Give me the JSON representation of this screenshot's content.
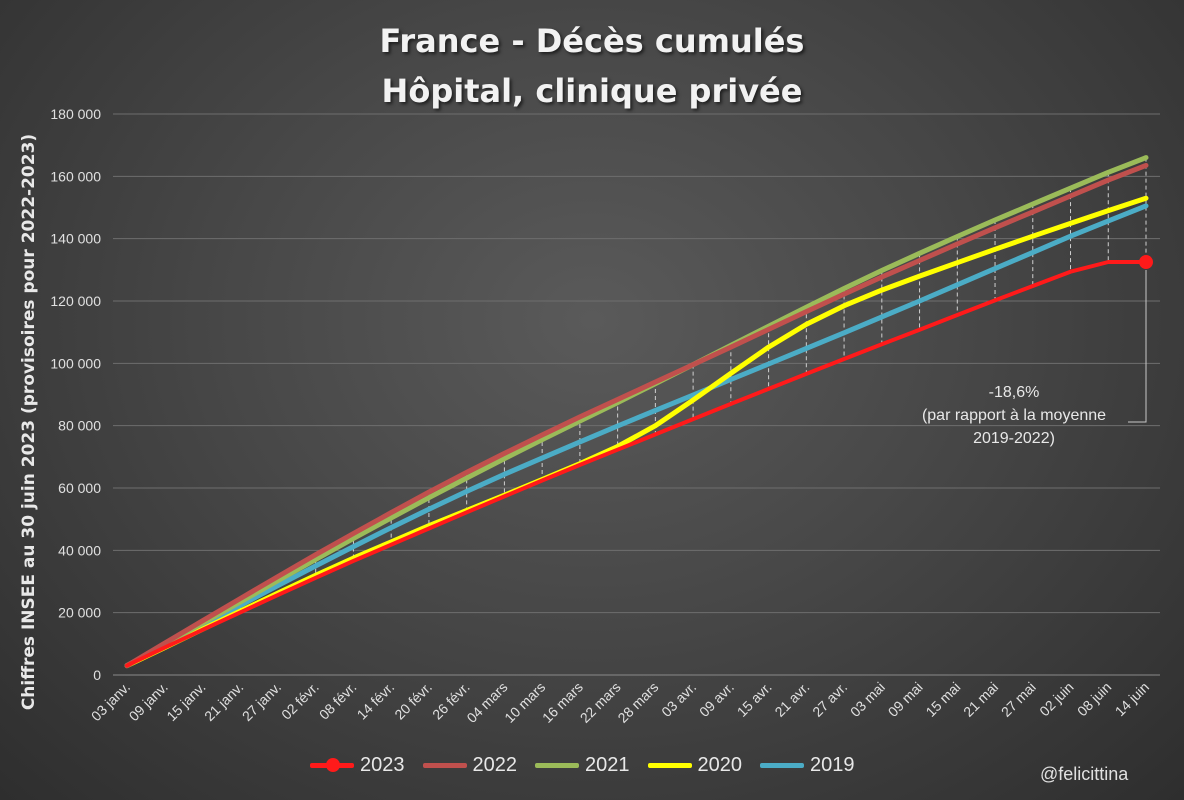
{
  "chart_data": {
    "type": "line",
    "title": [
      "France - Décès cumulés",
      "Hôpital, clinique privée"
    ],
    "ylabel": "Chiffres INSEE au 30 juin 2023 (provisoires pour 2022-2023)",
    "ylim": [
      0,
      180000
    ],
    "yticks": [
      0,
      20000,
      40000,
      60000,
      80000,
      100000,
      120000,
      140000,
      160000,
      180000
    ],
    "ytick_labels": [
      "0",
      "20 000",
      "40 000",
      "60 000",
      "80 000",
      "100 000",
      "120 000",
      "140 000",
      "160 000",
      "180 000"
    ],
    "grid": true,
    "legend_position": "bottom",
    "x": [
      "03 janv.",
      "09 janv.",
      "15 janv.",
      "21 janv.",
      "27 janv.",
      "02 févr.",
      "08 févr.",
      "14 févr.",
      "20 févr.",
      "26 févr.",
      "04 mars",
      "10 mars",
      "16 mars",
      "22 mars",
      "28 mars",
      "03 avr.",
      "09 avr.",
      "15 avr.",
      "21 avr.",
      "27 avr.",
      "03 mai",
      "09 mai",
      "15 mai",
      "21 mai",
      "27 mai",
      "02 juin",
      "08 juin",
      "14 juin"
    ],
    "series": [
      {
        "name": "2023",
        "color": "#ff1a1a",
        "values": [
          3000,
          8800,
          14500,
          20100,
          25700,
          31200,
          36600,
          41800,
          47000,
          52200,
          57300,
          62400,
          67400,
          72300,
          77200,
          82100,
          87000,
          91800,
          96600,
          101400,
          106100,
          110800,
          115500,
          120200,
          124800,
          129400,
          132500,
          132500
        ]
      },
      {
        "name": "2022",
        "color": "#c0504d",
        "values": [
          3000,
          10200,
          17400,
          24500,
          31600,
          38600,
          45400,
          52100,
          58700,
          65000,
          71100,
          77000,
          82800,
          88400,
          94000,
          99600,
          105200,
          110900,
          116600,
          122200,
          127700,
          133000,
          138300,
          143500,
          148600,
          153700,
          158800,
          163500
        ]
      },
      {
        "name": "2021",
        "color": "#9bbb59",
        "values": [
          3000,
          9800,
          16600,
          23400,
          30300,
          37100,
          43800,
          50400,
          56900,
          63200,
          69400,
          75500,
          81500,
          87400,
          93500,
          99600,
          105800,
          111900,
          118000,
          124000,
          129800,
          135300,
          140700,
          146000,
          151100,
          156200,
          161300,
          166000
        ]
      },
      {
        "name": "2020",
        "color": "#ffff00",
        "values": [
          3000,
          8800,
          14700,
          20500,
          26300,
          32000,
          37500,
          42700,
          47900,
          52800,
          57700,
          62700,
          67800,
          73300,
          80000,
          88200,
          96800,
          105200,
          112500,
          118500,
          123500,
          128000,
          132300,
          136600,
          140800,
          144900,
          149000,
          153000
        ]
      },
      {
        "name": "2019",
        "color": "#4bacc6",
        "values": [
          3000,
          9600,
          16000,
          22300,
          28700,
          35000,
          41200,
          47300,
          53200,
          58900,
          64400,
          69600,
          74800,
          79900,
          84900,
          89800,
          94800,
          99800,
          104800,
          109800,
          114900,
          120000,
          125200,
          130400,
          135600,
          140800,
          145700,
          150500
        ]
      }
    ],
    "annotation": [
      "-18,6%",
      "(par rapport à la moyenne",
      "2019-2022)"
    ]
  },
  "watermark": "@felicittina"
}
